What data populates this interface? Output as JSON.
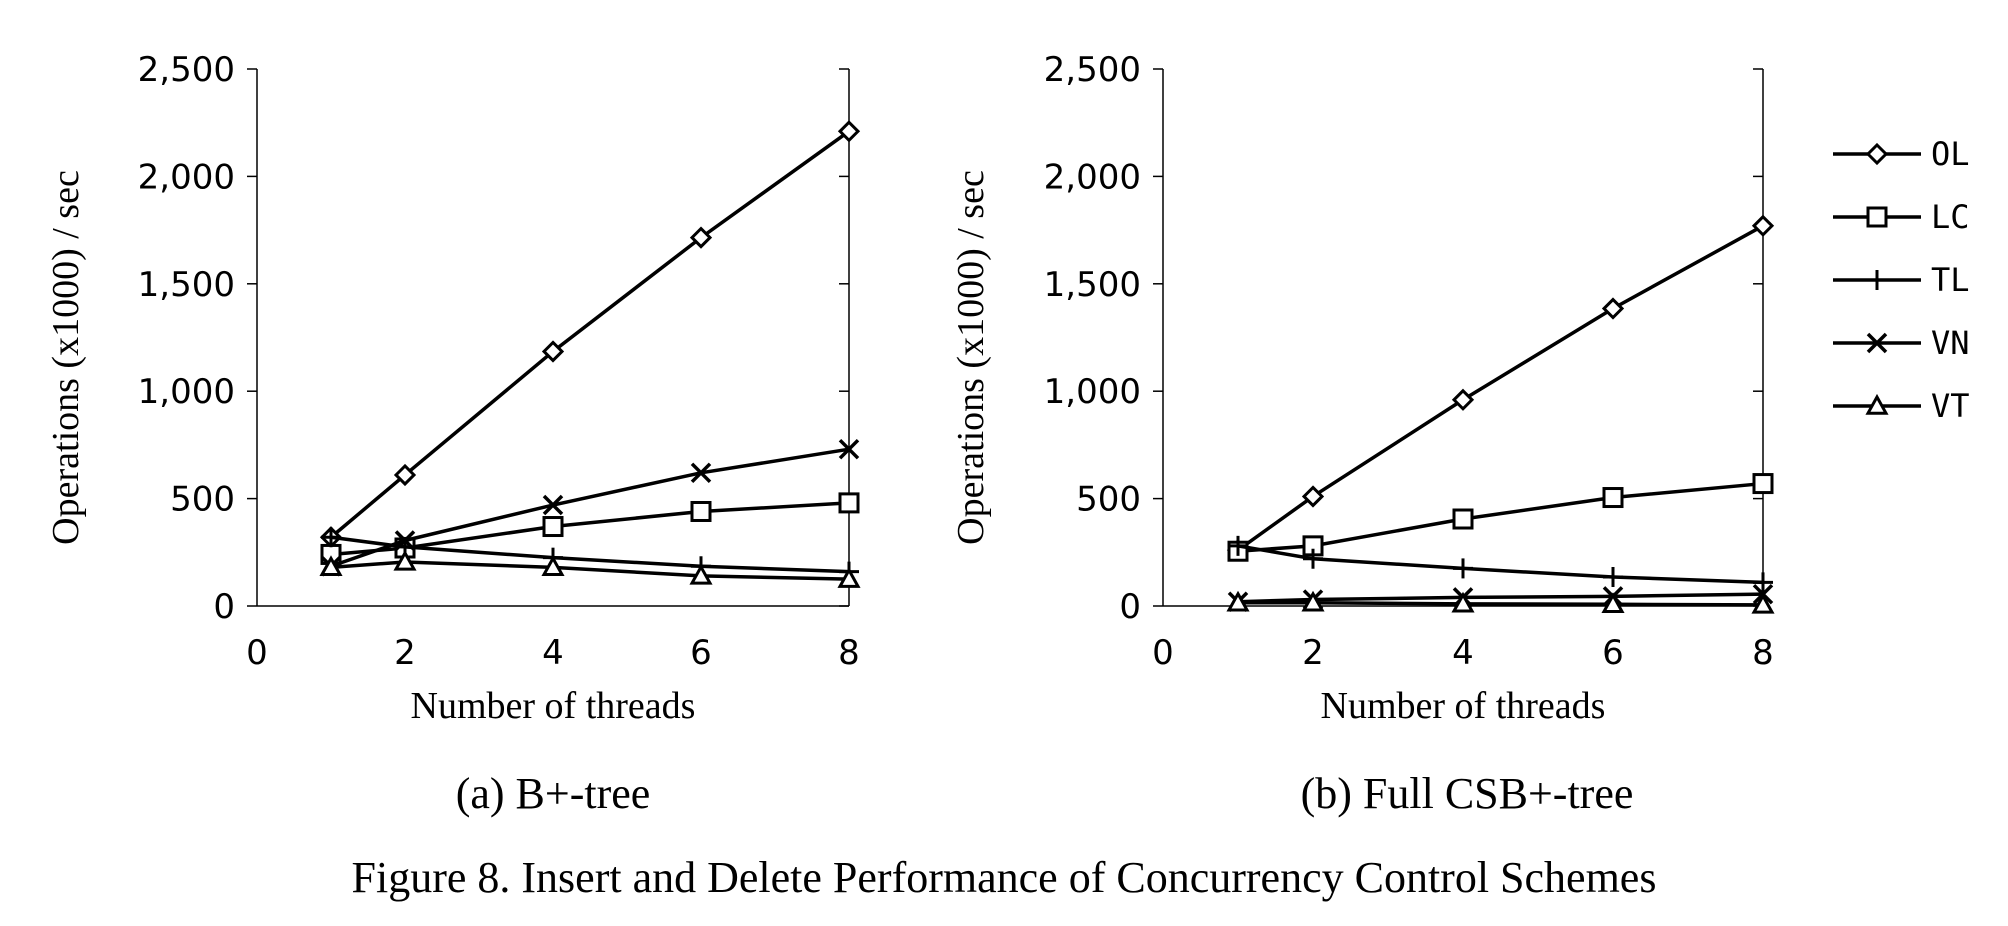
{
  "figure_caption": "Figure 8. Insert and Delete Performance of Concurrency Control Schemes",
  "legend": {
    "placement": "right",
    "entries": [
      {
        "label": "OL",
        "marker": "diamond"
      },
      {
        "label": "LC",
        "marker": "square"
      },
      {
        "label": "TL",
        "marker": "plus"
      },
      {
        "label": "VN",
        "marker": "x"
      },
      {
        "label": "VT",
        "marker": "triangle"
      }
    ]
  },
  "chart_data": [
    {
      "type": "line",
      "subtitle": "(a) B+-tree",
      "xlabel": "Number of threads",
      "ylabel": "Operations (x1000) / sec",
      "xlim": [
        0,
        8
      ],
      "ylim": [
        0,
        2500
      ],
      "xticks": [
        0,
        2,
        4,
        6,
        8
      ],
      "xtick_labels": [
        "0",
        "2",
        "4",
        "6",
        "8"
      ],
      "yticks": [
        0,
        500,
        1000,
        1500,
        2000,
        2500
      ],
      "ytick_labels": [
        "0",
        "500",
        "1,000",
        "1,500",
        "2,000",
        "2,500"
      ],
      "grid": false,
      "x": [
        1,
        2,
        4,
        6,
        8
      ],
      "series": [
        {
          "name": "OL",
          "marker": "diamond",
          "values": [
            320,
            610,
            1185,
            1715,
            2210
          ]
        },
        {
          "name": "LC",
          "marker": "square",
          "values": [
            240,
            270,
            370,
            440,
            480
          ]
        },
        {
          "name": "TL",
          "marker": "plus",
          "values": [
            320,
            275,
            225,
            185,
            160
          ]
        },
        {
          "name": "VN",
          "marker": "x",
          "values": [
            185,
            305,
            470,
            620,
            730
          ]
        },
        {
          "name": "VT",
          "marker": "triangle",
          "values": [
            180,
            205,
            180,
            140,
            125
          ]
        }
      ]
    },
    {
      "type": "line",
      "subtitle": "(b) Full CSB+-tree",
      "xlabel": "Number of threads",
      "ylabel": "Operations (x1000) / sec",
      "xlim": [
        0,
        8
      ],
      "ylim": [
        0,
        2500
      ],
      "xticks": [
        0,
        2,
        4,
        6,
        8
      ],
      "xtick_labels": [
        "0",
        "2",
        "4",
        "6",
        "8"
      ],
      "yticks": [
        0,
        500,
        1000,
        1500,
        2000,
        2500
      ],
      "ytick_labels": [
        "0",
        "500",
        "1,000",
        "1,500",
        "2,000",
        "2,500"
      ],
      "grid": false,
      "x": [
        1,
        2,
        4,
        6,
        8
      ],
      "series": [
        {
          "name": "OL",
          "marker": "diamond",
          "values": [
            260,
            510,
            960,
            1385,
            1770
          ]
        },
        {
          "name": "LC",
          "marker": "square",
          "values": [
            255,
            280,
            405,
            505,
            570
          ]
        },
        {
          "name": "TL",
          "marker": "plus",
          "values": [
            280,
            220,
            175,
            135,
            110
          ]
        },
        {
          "name": "VN",
          "marker": "x",
          "values": [
            20,
            30,
            40,
            45,
            55
          ]
        },
        {
          "name": "VT",
          "marker": "triangle",
          "values": [
            15,
            15,
            10,
            8,
            5
          ]
        }
      ]
    }
  ]
}
